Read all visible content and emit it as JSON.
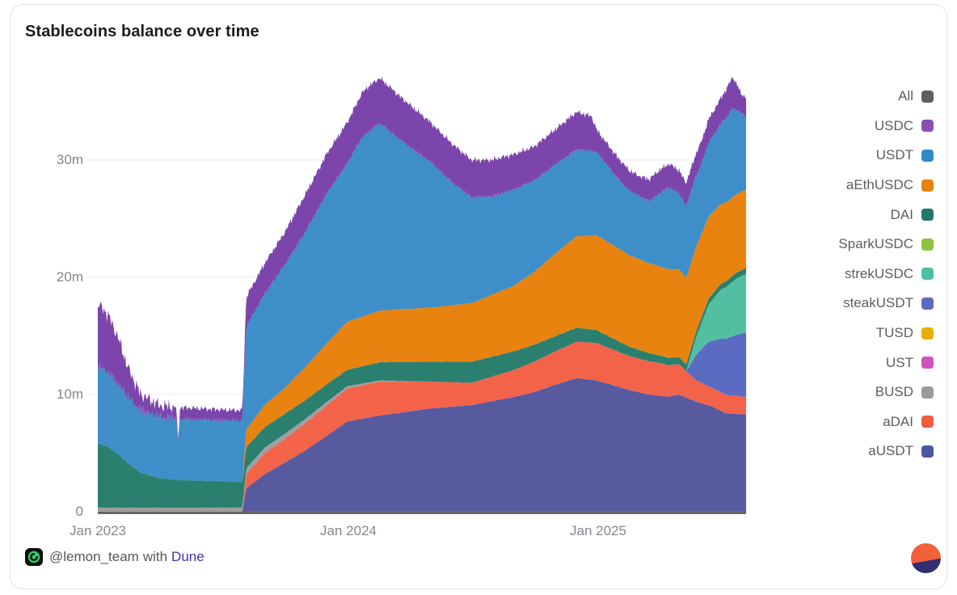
{
  "title": "Stablecoins balance over time",
  "footer": {
    "handle": "@lemon_team",
    "connector": "with",
    "brand_link": "Dune",
    "link_color": "#3A36B1",
    "icon_green": "#2BD464",
    "dune_logo": {
      "top_color": "#F2603C",
      "bottom_color": "#312F72"
    }
  },
  "legend": {
    "items": [
      {
        "label": "All",
        "color": "#5F5D63"
      },
      {
        "label": "USDC",
        "color": "#8A4FB4"
      },
      {
        "label": "USDT",
        "color": "#3089C9"
      },
      {
        "label": "aEthUSDC",
        "color": "#E8820E"
      },
      {
        "label": "DAI",
        "color": "#23766B"
      },
      {
        "label": "SparkUSDC",
        "color": "#8CC440"
      },
      {
        "label": "strekUSDC",
        "color": "#4DBFA2"
      },
      {
        "label": "steakUSDT",
        "color": "#5B6BC0"
      },
      {
        "label": "TUSD",
        "color": "#EBAE08"
      },
      {
        "label": "UST",
        "color": "#D053BB"
      },
      {
        "label": "BUSD",
        "color": "#9B9B9B"
      },
      {
        "label": "aDAI",
        "color": "#F15B40"
      },
      {
        "label": "aUSDT",
        "color": "#4E55A3"
      }
    ]
  },
  "chart_data": {
    "type": "area",
    "stacked": true,
    "title": "Stablecoins balance over time",
    "legend_position": "right",
    "stack_order": "bottom_to_top",
    "x_axis": {
      "tick_labels": [
        "Jan 2023",
        "Jan 2024",
        "Jan 2025"
      ],
      "tick_positions": [
        2023.0,
        2024.0,
        2025.0
      ],
      "range": [
        2023.0,
        2025.6
      ],
      "unit": "date (decimal years)"
    },
    "y_axis": {
      "tick_labels": [
        "0",
        "10m",
        "20m",
        "30m"
      ],
      "tick_values": [
        0,
        10,
        20,
        30
      ],
      "grid_values": [
        10,
        20,
        30
      ],
      "range": [
        0,
        37.5
      ],
      "unit": "balance, millions"
    },
    "series": [
      {
        "name": "aUSDT",
        "color": "#575A9F",
        "jitter": 0.06,
        "points": [
          [
            2023.0,
            0
          ],
          [
            2023.58,
            0
          ],
          [
            2023.595,
            2.0
          ],
          [
            2023.67,
            3.2
          ],
          [
            2023.75,
            4.2
          ],
          [
            2023.83,
            5.2
          ],
          [
            2023.92,
            6.5
          ],
          [
            2024.0,
            7.7
          ],
          [
            2024.13,
            8.2
          ],
          [
            2024.33,
            8.8
          ],
          [
            2024.5,
            9.1
          ],
          [
            2024.67,
            9.8
          ],
          [
            2024.75,
            10.2
          ],
          [
            2024.83,
            10.8
          ],
          [
            2024.92,
            11.4
          ],
          [
            2025.0,
            11.2
          ],
          [
            2025.13,
            10.4
          ],
          [
            2025.21,
            10.0
          ],
          [
            2025.29,
            9.8
          ],
          [
            2025.33,
            10.0
          ],
          [
            2025.4,
            9.4
          ],
          [
            2025.46,
            9.0
          ],
          [
            2025.52,
            8.4
          ],
          [
            2025.6,
            8.3
          ]
        ]
      },
      {
        "name": "aDAI",
        "color": "#F3634A",
        "jitter": 0.06,
        "points": [
          [
            2023.0,
            0
          ],
          [
            2023.58,
            0
          ],
          [
            2023.595,
            1.2
          ],
          [
            2023.67,
            1.8
          ],
          [
            2023.75,
            2.0
          ],
          [
            2023.83,
            2.3
          ],
          [
            2023.92,
            2.6
          ],
          [
            2024.0,
            2.8
          ],
          [
            2024.13,
            2.9
          ],
          [
            2024.33,
            2.3
          ],
          [
            2024.5,
            1.9
          ],
          [
            2024.67,
            2.3
          ],
          [
            2024.75,
            2.6
          ],
          [
            2024.92,
            3.1
          ],
          [
            2025.0,
            3.2
          ],
          [
            2025.13,
            2.9
          ],
          [
            2025.25,
            2.8
          ],
          [
            2025.33,
            2.6
          ],
          [
            2025.4,
            1.8
          ],
          [
            2025.46,
            1.6
          ],
          [
            2025.6,
            1.5
          ]
        ]
      },
      {
        "name": "BUSD",
        "color": "#9E9EA0",
        "jitter": 0.02,
        "points": [
          [
            2023.0,
            0.35
          ],
          [
            2023.58,
            0.35
          ],
          [
            2023.595,
            0.5
          ],
          [
            2023.75,
            0.45
          ],
          [
            2023.92,
            0.3
          ],
          [
            2024.0,
            0.2
          ],
          [
            2024.13,
            0.1
          ],
          [
            2024.25,
            0.03
          ],
          [
            2024.33,
            0
          ],
          [
            2025.6,
            0
          ]
        ]
      },
      {
        "name": "UST",
        "color": "#D053BB",
        "jitter": 0,
        "points": [
          [
            2023.0,
            0
          ],
          [
            2025.6,
            0
          ]
        ]
      },
      {
        "name": "TUSD",
        "color": "#EBAE08",
        "jitter": 0,
        "points": [
          [
            2023.0,
            0
          ],
          [
            2025.6,
            0
          ]
        ]
      },
      {
        "name": "steakUSDT",
        "color": "#5C6BC2",
        "jitter": 0.05,
        "points": [
          [
            2023.0,
            0
          ],
          [
            2025.36,
            0
          ],
          [
            2025.4,
            2.2
          ],
          [
            2025.45,
            3.8
          ],
          [
            2025.5,
            4.6
          ],
          [
            2025.56,
            5.2
          ],
          [
            2025.6,
            5.5
          ]
        ]
      },
      {
        "name": "strekUSDC",
        "color": "#52BFA0",
        "jitter": 0.05,
        "points": [
          [
            2023.0,
            0
          ],
          [
            2025.36,
            0
          ],
          [
            2025.4,
            1.5
          ],
          [
            2025.45,
            3.2
          ],
          [
            2025.5,
            4.2
          ],
          [
            2025.56,
            4.8
          ],
          [
            2025.6,
            5.0
          ]
        ]
      },
      {
        "name": "SparkUSDC",
        "color": "#8CC440",
        "jitter": 0,
        "points": [
          [
            2023.0,
            0
          ],
          [
            2025.6,
            0
          ]
        ]
      },
      {
        "name": "DAI",
        "color": "#2A7F6F",
        "jitter": 0.08,
        "points": [
          [
            2023.0,
            5.5
          ],
          [
            2023.04,
            5.2
          ],
          [
            2023.08,
            4.6
          ],
          [
            2023.12,
            3.8
          ],
          [
            2023.17,
            3.0
          ],
          [
            2023.25,
            2.5
          ],
          [
            2023.33,
            2.35
          ],
          [
            2023.5,
            2.25
          ],
          [
            2023.58,
            2.2
          ],
          [
            2023.595,
            1.8
          ],
          [
            2023.75,
            1.7
          ],
          [
            2023.92,
            1.5
          ],
          [
            2024.0,
            1.4
          ],
          [
            2024.17,
            1.6
          ],
          [
            2024.33,
            1.7
          ],
          [
            2024.5,
            1.8
          ],
          [
            2024.67,
            1.6
          ],
          [
            2024.83,
            1.3
          ],
          [
            2024.92,
            1.2
          ],
          [
            2025.0,
            1.1
          ],
          [
            2025.13,
            0.8
          ],
          [
            2025.25,
            0.65
          ],
          [
            2025.33,
            0.6
          ],
          [
            2025.42,
            0.5
          ],
          [
            2025.6,
            0.5
          ]
        ]
      },
      {
        "name": "aEthUSDC",
        "color": "#E8830F",
        "jitter": 0.12,
        "points": [
          [
            2023.0,
            0
          ],
          [
            2023.58,
            0
          ],
          [
            2023.595,
            1.5
          ],
          [
            2023.67,
            1.9
          ],
          [
            2023.75,
            2.2
          ],
          [
            2023.83,
            2.8
          ],
          [
            2023.92,
            3.5
          ],
          [
            2024.0,
            4.1
          ],
          [
            2024.13,
            4.4
          ],
          [
            2024.33,
            4.6
          ],
          [
            2024.5,
            5.0
          ],
          [
            2024.67,
            5.6
          ],
          [
            2024.75,
            6.2
          ],
          [
            2024.83,
            7.0
          ],
          [
            2024.92,
            7.8
          ],
          [
            2025.0,
            8.1
          ],
          [
            2025.13,
            7.8
          ],
          [
            2025.25,
            7.6
          ],
          [
            2025.33,
            7.5
          ],
          [
            2025.45,
            7.0
          ],
          [
            2025.52,
            6.7
          ],
          [
            2025.6,
            6.7
          ]
        ]
      },
      {
        "name": "USDT",
        "color": "#3E8EC9",
        "jitter": 0.3,
        "points": [
          [
            2023.0,
            6.6
          ],
          [
            2023.04,
            6.3
          ],
          [
            2023.08,
            6.0
          ],
          [
            2023.12,
            5.6
          ],
          [
            2023.17,
            5.3
          ],
          [
            2023.25,
            5.2
          ],
          [
            2023.315,
            5.2
          ],
          [
            2023.322,
            3.0
          ],
          [
            2023.33,
            5.2
          ],
          [
            2023.5,
            5.2
          ],
          [
            2023.58,
            5.2
          ],
          [
            2023.595,
            8.8
          ],
          [
            2023.67,
            9.5
          ],
          [
            2023.75,
            10.5
          ],
          [
            2023.83,
            11.5
          ],
          [
            2023.92,
            12.8
          ],
          [
            2024.0,
            13.5
          ],
          [
            2024.06,
            15.3
          ],
          [
            2024.13,
            16.0
          ],
          [
            2024.21,
            14.5
          ],
          [
            2024.33,
            12.5
          ],
          [
            2024.42,
            10.5
          ],
          [
            2024.5,
            9.0
          ],
          [
            2024.58,
            8.4
          ],
          [
            2024.67,
            8.2
          ],
          [
            2024.75,
            7.8
          ],
          [
            2024.83,
            7.6
          ],
          [
            2024.92,
            7.4
          ],
          [
            2025.0,
            7.1
          ],
          [
            2025.08,
            6.0
          ],
          [
            2025.13,
            5.5
          ],
          [
            2025.21,
            5.3
          ],
          [
            2025.29,
            7.0
          ],
          [
            2025.35,
            6.2
          ],
          [
            2025.42,
            6.0
          ],
          [
            2025.48,
            6.6
          ],
          [
            2025.545,
            7.6
          ],
          [
            2025.6,
            6.2
          ]
        ]
      },
      {
        "name": "USDC",
        "color": "#7C45AB",
        "jitter": 0.5,
        "points": [
          [
            2023.0,
            5.3
          ],
          [
            2023.04,
            5.0
          ],
          [
            2023.08,
            4.0
          ],
          [
            2023.12,
            2.6
          ],
          [
            2023.17,
            1.4
          ],
          [
            2023.25,
            1.0
          ],
          [
            2023.315,
            1.0
          ],
          [
            2023.322,
            0.2
          ],
          [
            2023.33,
            1.0
          ],
          [
            2023.42,
            0.95
          ],
          [
            2023.5,
            0.9
          ],
          [
            2023.58,
            0.9
          ],
          [
            2023.595,
            2.5
          ],
          [
            2023.67,
            2.6
          ],
          [
            2023.75,
            2.8
          ],
          [
            2023.83,
            3.2
          ],
          [
            2023.92,
            3.4
          ],
          [
            2024.0,
            3.5
          ],
          [
            2024.08,
            3.9
          ],
          [
            2024.17,
            3.8
          ],
          [
            2024.25,
            3.6
          ],
          [
            2024.33,
            3.4
          ],
          [
            2024.5,
            3.2
          ],
          [
            2024.67,
            3.0
          ],
          [
            2024.75,
            2.9
          ],
          [
            2024.83,
            3.0
          ],
          [
            2024.92,
            3.2
          ],
          [
            2024.98,
            3.0
          ],
          [
            2025.0,
            1.9
          ],
          [
            2025.08,
            1.8
          ],
          [
            2025.17,
            1.7
          ],
          [
            2025.25,
            2.0
          ],
          [
            2025.33,
            2.0
          ],
          [
            2025.42,
            1.9
          ],
          [
            2025.5,
            2.2
          ],
          [
            2025.545,
            2.7
          ],
          [
            2025.58,
            1.7
          ],
          [
            2025.6,
            1.6
          ]
        ]
      }
    ]
  }
}
